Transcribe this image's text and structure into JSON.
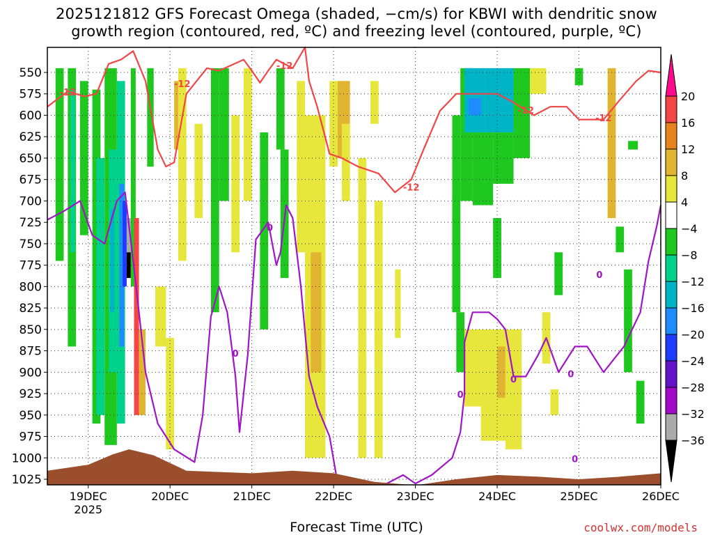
{
  "chart_data": {
    "type": "heatmap",
    "title_line1": "2025121812 GFS Forecast Omega (shaded, −cm/s) for KBWI with dendritic snow",
    "title_line2": "growth region (contoured, red, ºC) and freezing level (contoured, purple, ºC)",
    "xlabel": "Forecast Time (UTC)",
    "credit": "coolwx.com/models",
    "x_ticks": [
      {
        "label": "19DEC",
        "sub": "2025",
        "day": 19
      },
      {
        "label": "20DEC",
        "sub": "",
        "day": 20
      },
      {
        "label": "21DEC",
        "sub": "",
        "day": 21
      },
      {
        "label": "22DEC",
        "sub": "",
        "day": 22
      },
      {
        "label": "23DEC",
        "sub": "",
        "day": 23
      },
      {
        "label": "24DEC",
        "sub": "",
        "day": 24
      },
      {
        "label": "25DEC",
        "sub": "",
        "day": 25
      },
      {
        "label": "26DEC",
        "sub": "",
        "day": 26
      }
    ],
    "xlim": [
      18.5,
      26.0
    ],
    "y_levels": [
      "550",
      "575",
      "600",
      "625",
      "650",
      "675",
      "700",
      "725",
      "750",
      "775",
      "800",
      "825",
      "850",
      "875",
      "900",
      "925",
      "950",
      "975",
      "1000",
      "1025"
    ],
    "colorbar_labels": [
      "20",
      "16",
      "12",
      "8",
      "4",
      "−4",
      "−8",
      "−12",
      "−16",
      "−20",
      "−24",
      "−28",
      "−32",
      "−36"
    ],
    "colorbar_colors": [
      "#ff0a8c",
      "#f44646",
      "#e8821e",
      "#e1b432",
      "#e6e63c",
      "#ffffff",
      "#1ec81e",
      "#00d28c",
      "#00b4c8",
      "#1e8cff",
      "#1e3cff",
      "#6414c8",
      "#a00ac8",
      "#aaaaaa",
      "#000000"
    ],
    "contour_labels": {
      "red": "-12",
      "purple": "0"
    },
    "series": [
      {
        "name": "dendritic growth region (-12 C)",
        "color": "#f04646",
        "points": [
          [
            18.5,
            590
          ],
          [
            18.75,
            572
          ],
          [
            18.95,
            578
          ],
          [
            19.1,
            575
          ],
          [
            19.25,
            540
          ],
          [
            19.4,
            535
          ],
          [
            19.55,
            525
          ],
          [
            19.7,
            560
          ],
          [
            19.85,
            640
          ],
          [
            19.95,
            660
          ],
          [
            20.05,
            655
          ],
          [
            20.2,
            575
          ],
          [
            20.45,
            545
          ],
          [
            20.6,
            548
          ],
          [
            20.9,
            535
          ],
          [
            21.0,
            548
          ],
          [
            21.1,
            562
          ],
          [
            21.2,
            548
          ],
          [
            21.3,
            535
          ],
          [
            21.5,
            545
          ],
          [
            21.65,
            520
          ],
          [
            21.7,
            560
          ],
          [
            21.8,
            590
          ],
          [
            21.95,
            645
          ],
          [
            22.1,
            650
          ],
          [
            22.3,
            660
          ],
          [
            22.55,
            668
          ],
          [
            22.75,
            690
          ],
          [
            22.95,
            675
          ],
          [
            23.1,
            640
          ],
          [
            23.3,
            595
          ],
          [
            23.5,
            575
          ],
          [
            23.8,
            575
          ],
          [
            24.0,
            575
          ],
          [
            24.2,
            585
          ],
          [
            24.45,
            600
          ],
          [
            24.65,
            590
          ],
          [
            24.85,
            590
          ],
          [
            25.0,
            605
          ],
          [
            25.3,
            605
          ],
          [
            25.5,
            582
          ],
          [
            25.7,
            560
          ],
          [
            25.85,
            548
          ],
          [
            26.0,
            550
          ]
        ]
      },
      {
        "name": "freezing level (0 C)",
        "color": "#a014c8",
        "points": [
          [
            18.5,
            722
          ],
          [
            18.7,
            712
          ],
          [
            18.9,
            700
          ],
          [
            19.05,
            740
          ],
          [
            19.2,
            750
          ],
          [
            19.35,
            700
          ],
          [
            19.45,
            690
          ],
          [
            19.55,
            770
          ],
          [
            19.62,
            830
          ],
          [
            19.7,
            900
          ],
          [
            19.85,
            960
          ],
          [
            20.05,
            990
          ],
          [
            20.3,
            1005
          ],
          [
            20.4,
            950
          ],
          [
            20.5,
            835
          ],
          [
            20.6,
            800
          ],
          [
            20.7,
            830
          ],
          [
            20.8,
            905
          ],
          [
            20.85,
            970
          ],
          [
            20.95,
            880
          ],
          [
            21.05,
            745
          ],
          [
            21.2,
            725
          ],
          [
            21.3,
            775
          ],
          [
            21.35,
            760
          ],
          [
            21.42,
            705
          ],
          [
            21.5,
            720
          ],
          [
            21.6,
            800
          ],
          [
            21.7,
            905
          ],
          [
            21.8,
            940
          ],
          [
            21.95,
            975
          ],
          [
            22.05,
            1030
          ],
          [
            22.3,
            1030
          ],
          [
            22.65,
            1030
          ],
          [
            22.85,
            1020
          ],
          [
            23.0,
            1030
          ],
          [
            23.2,
            1020
          ],
          [
            23.45,
            1000
          ],
          [
            23.55,
            970
          ],
          [
            23.6,
            925
          ],
          [
            23.6,
            865
          ],
          [
            23.7,
            830
          ],
          [
            23.9,
            830
          ],
          [
            24.0,
            838
          ],
          [
            24.1,
            850
          ],
          [
            24.2,
            905
          ],
          [
            24.35,
            905
          ],
          [
            24.5,
            880
          ],
          [
            24.6,
            860
          ],
          [
            24.75,
            900
          ],
          [
            24.95,
            870
          ],
          [
            25.1,
            870
          ],
          [
            25.3,
            900
          ],
          [
            25.55,
            870
          ],
          [
            25.75,
            830
          ],
          [
            25.85,
            770
          ],
          [
            25.95,
            730
          ],
          [
            26.0,
            705
          ]
        ]
      }
    ],
    "omega_cells": [
      {
        "t0": 18.6,
        "t1": 18.7,
        "p0": 545,
        "p1": 770,
        "v": -6
      },
      {
        "t0": 18.75,
        "t1": 18.85,
        "p0": 545,
        "p1": 870,
        "v": -6
      },
      {
        "t0": 18.78,
        "t1": 18.84,
        "p0": 570,
        "p1": 760,
        "v": -10
      },
      {
        "t0": 18.9,
        "t1": 19.0,
        "p0": 560,
        "p1": 740,
        "v": -6
      },
      {
        "t0": 19.05,
        "t1": 19.15,
        "p0": 570,
        "p1": 960,
        "v": -6
      },
      {
        "t0": 19.1,
        "t1": 19.2,
        "p0": 650,
        "p1": 950,
        "v": -10
      },
      {
        "t0": 19.2,
        "t1": 19.35,
        "p0": 545,
        "p1": 985,
        "v": -6
      },
      {
        "t0": 19.25,
        "t1": 19.35,
        "p0": 640,
        "p1": 900,
        "v": -10
      },
      {
        "t0": 19.27,
        "t1": 19.32,
        "p0": 710,
        "p1": 830,
        "v": -14
      },
      {
        "t0": 19.35,
        "t1": 19.45,
        "p0": 560,
        "p1": 960,
        "v": -10
      },
      {
        "t0": 19.38,
        "t1": 19.44,
        "p0": 680,
        "p1": 870,
        "v": -18
      },
      {
        "t0": 19.42,
        "t1": 19.47,
        "p0": 700,
        "p1": 800,
        "v": -22
      },
      {
        "t0": 19.47,
        "t1": 19.52,
        "p0": 720,
        "p1": 760,
        "v": -34
      },
      {
        "t0": 19.47,
        "t1": 19.52,
        "p0": 760,
        "p1": 790,
        "v": -38
      },
      {
        "t0": 19.52,
        "t1": 19.58,
        "p0": 545,
        "p1": 800,
        "v": -6
      },
      {
        "t0": 19.56,
        "t1": 19.62,
        "p0": 720,
        "p1": 950,
        "v": 18
      },
      {
        "t0": 19.62,
        "t1": 19.7,
        "p0": 850,
        "p1": 950,
        "v": 8
      },
      {
        "t0": 19.72,
        "t1": 19.8,
        "p0": 545,
        "p1": 660,
        "v": -6
      },
      {
        "t0": 19.82,
        "t1": 19.95,
        "p0": 800,
        "p1": 870,
        "v": 6
      },
      {
        "t0": 19.95,
        "t1": 20.05,
        "p0": 860,
        "p1": 990,
        "v": 6
      },
      {
        "t0": 20.05,
        "t1": 20.15,
        "p0": 560,
        "p1": 640,
        "v": 10
      },
      {
        "t0": 20.1,
        "t1": 20.2,
        "p0": 545,
        "p1": 770,
        "v": 6
      },
      {
        "t0": 20.3,
        "t1": 20.4,
        "p0": 610,
        "p1": 720,
        "v": 6
      },
      {
        "t0": 20.5,
        "t1": 20.6,
        "p0": 545,
        "p1": 830,
        "v": -6
      },
      {
        "t0": 20.6,
        "t1": 20.72,
        "p0": 545,
        "p1": 700,
        "v": -6
      },
      {
        "t0": 20.75,
        "t1": 20.85,
        "p0": 600,
        "p1": 760,
        "v": 6
      },
      {
        "t0": 20.9,
        "t1": 21.0,
        "p0": 545,
        "p1": 700,
        "v": 6
      },
      {
        "t0": 21.1,
        "t1": 21.2,
        "p0": 620,
        "p1": 700,
        "v": -6
      },
      {
        "t0": 21.1,
        "t1": 21.2,
        "p0": 700,
        "p1": 850,
        "v": -6
      },
      {
        "t0": 21.3,
        "t1": 21.4,
        "p0": 545,
        "p1": 640,
        "v": -6
      },
      {
        "t0": 21.35,
        "t1": 21.45,
        "p0": 640,
        "p1": 790,
        "v": -6
      },
      {
        "t0": 21.55,
        "t1": 21.65,
        "p0": 560,
        "p1": 760,
        "v": 6
      },
      {
        "t0": 21.65,
        "t1": 21.9,
        "p0": 600,
        "p1": 1000,
        "v": 6
      },
      {
        "t0": 21.72,
        "t1": 21.85,
        "p0": 760,
        "p1": 900,
        "v": 10
      },
      {
        "t0": 21.95,
        "t1": 22.05,
        "p0": 560,
        "p1": 660,
        "v": 6
      },
      {
        "t0": 22.05,
        "t1": 22.2,
        "p0": 560,
        "p1": 650,
        "v": 10
      },
      {
        "t0": 22.1,
        "t1": 22.2,
        "p0": 610,
        "p1": 700,
        "v": 6
      },
      {
        "t0": 22.3,
        "t1": 22.4,
        "p0": 650,
        "p1": 1000,
        "v": 6
      },
      {
        "t0": 22.45,
        "t1": 22.55,
        "p0": 560,
        "p1": 610,
        "v": 6
      },
      {
        "t0": 22.5,
        "t1": 22.6,
        "p0": 700,
        "p1": 1000,
        "v": 6
      },
      {
        "t0": 22.75,
        "t1": 22.82,
        "p0": 780,
        "p1": 860,
        "v": 6
      },
      {
        "t0": 23.45,
        "t1": 23.55,
        "p0": 600,
        "p1": 830,
        "v": -6
      },
      {
        "t0": 23.5,
        "t1": 23.6,
        "p0": 830,
        "p1": 900,
        "v": -6
      },
      {
        "t0": 23.55,
        "t1": 23.7,
        "p0": 545,
        "p1": 700,
        "v": -6
      },
      {
        "t0": 23.6,
        "t1": 23.85,
        "p0": 545,
        "p1": 620,
        "v": -12
      },
      {
        "t0": 23.85,
        "t1": 24.2,
        "p0": 545,
        "p1": 620,
        "v": -12
      },
      {
        "t0": 23.65,
        "t1": 23.8,
        "p0": 580,
        "p1": 600,
        "v": -16
      },
      {
        "t0": 23.7,
        "t1": 23.95,
        "p0": 620,
        "p1": 705,
        "v": -6
      },
      {
        "t0": 23.95,
        "t1": 24.2,
        "p0": 620,
        "p1": 680,
        "v": -6
      },
      {
        "t0": 24.2,
        "t1": 24.4,
        "p0": 545,
        "p1": 650,
        "v": -6
      },
      {
        "t0": 24.4,
        "t1": 24.6,
        "p0": 545,
        "p1": 575,
        "v": 6
      },
      {
        "t0": 23.95,
        "t1": 24.05,
        "p0": 720,
        "p1": 790,
        "v": -6
      },
      {
        "t0": 23.6,
        "t1": 24.3,
        "p0": 850,
        "p1": 940,
        "v": 6
      },
      {
        "t0": 23.8,
        "t1": 24.2,
        "p0": 900,
        "p1": 980,
        "v": 6
      },
      {
        "t0": 24.0,
        "t1": 24.1,
        "p0": 870,
        "p1": 930,
        "v": 10
      },
      {
        "t0": 24.1,
        "t1": 24.3,
        "p0": 920,
        "p1": 990,
        "v": 6
      },
      {
        "t0": 24.55,
        "t1": 24.65,
        "p0": 830,
        "p1": 890,
        "v": 6
      },
      {
        "t0": 24.65,
        "t1": 24.75,
        "p0": 920,
        "p1": 950,
        "v": 6
      },
      {
        "t0": 24.7,
        "t1": 24.8,
        "p0": 760,
        "p1": 810,
        "v": -6
      },
      {
        "t0": 24.95,
        "t1": 25.05,
        "p0": 545,
        "p1": 565,
        "v": -6
      },
      {
        "t0": 25.35,
        "t1": 25.45,
        "p0": 545,
        "p1": 720,
        "v": 10
      },
      {
        "t0": 25.45,
        "t1": 25.55,
        "p0": 730,
        "p1": 760,
        "v": -6
      },
      {
        "t0": 25.55,
        "t1": 25.65,
        "p0": 780,
        "p1": 900,
        "v": -6
      },
      {
        "t0": 25.6,
        "t1": 25.72,
        "p0": 630,
        "p1": 640,
        "v": -6
      },
      {
        "t0": 25.7,
        "t1": 25.8,
        "p0": 910,
        "p1": 960,
        "v": -6
      }
    ],
    "terrain": [
      [
        18.5,
        1015
      ],
      [
        19.0,
        1008
      ],
      [
        19.3,
        996
      ],
      [
        19.5,
        990
      ],
      [
        19.8,
        997
      ],
      [
        20.2,
        1015
      ],
      [
        21.0,
        1018
      ],
      [
        21.5,
        1015
      ],
      [
        22.0,
        1018
      ],
      [
        22.5,
        1028
      ],
      [
        23.0,
        1032
      ],
      [
        23.5,
        1025
      ],
      [
        24.0,
        1020
      ],
      [
        24.5,
        1022
      ],
      [
        25.0,
        1025
      ],
      [
        25.5,
        1022
      ],
      [
        26.0,
        1018
      ]
    ]
  }
}
